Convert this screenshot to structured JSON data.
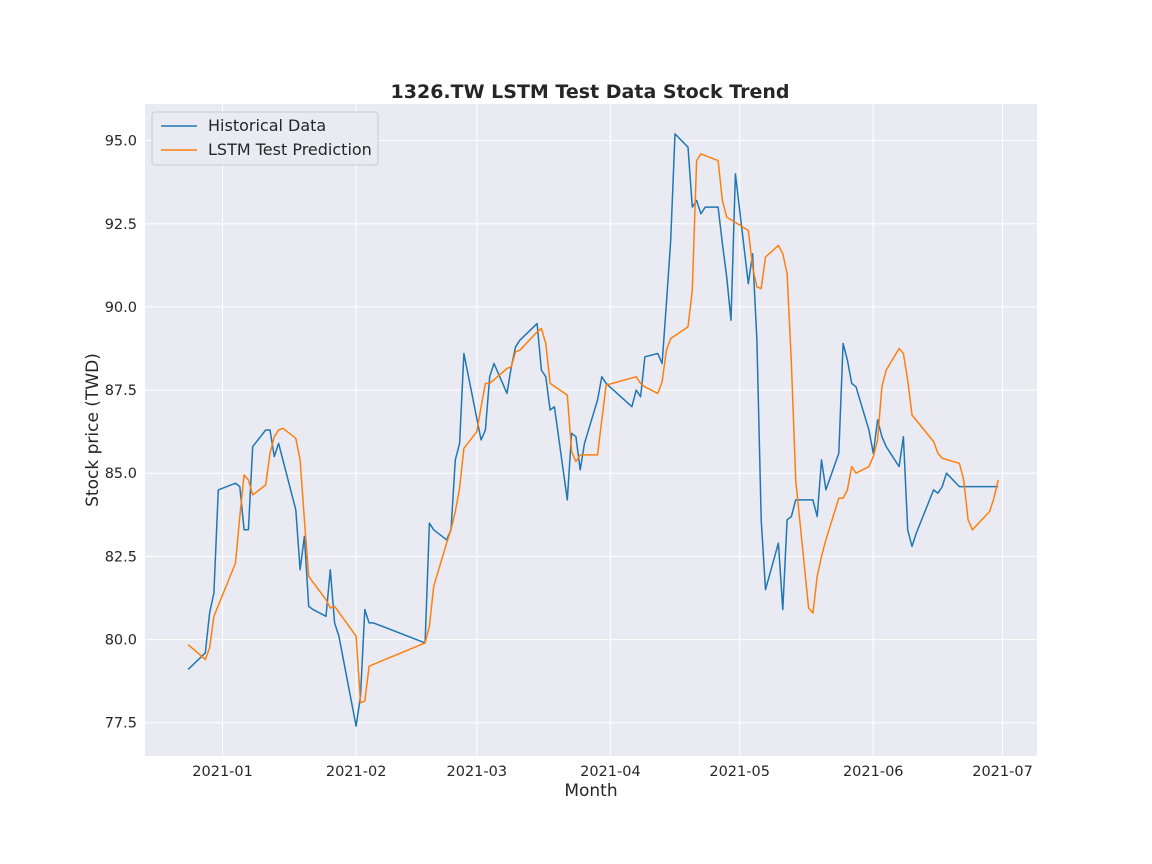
{
  "chart_data": {
    "type": "line",
    "title": "1326.TW  LSTM Test Data Stock Trend",
    "xlabel": "Month",
    "ylabel": "Stock price (TWD)",
    "x_tick_labels": [
      "2021-01",
      "2021-02",
      "2021-03",
      "2021-04",
      "2021-05",
      "2021-06",
      "2021-07"
    ],
    "y_tick_labels": [
      "77.5",
      "80.0",
      "82.5",
      "85.0",
      "87.5",
      "90.0",
      "92.5",
      "95.0"
    ],
    "y_ticks": [
      77.5,
      80.0,
      82.5,
      85.0,
      87.5,
      90.0,
      92.5,
      95.0
    ],
    "x_ticks": [
      "2021-01-01",
      "2021-02-01",
      "2021-03-01",
      "2021-04-01",
      "2021-05-01",
      "2021-06-01",
      "2021-07-01"
    ],
    "xlim": [
      "2020-12-14",
      "2021-07-09"
    ],
    "ylim": [
      76.5,
      96.1
    ],
    "grid": true,
    "legend_position": "upper-left",
    "colors": {
      "background": "#eaeaf2",
      "grid": "#ffffff",
      "historical": "#1f77b4",
      "prediction": "#ff7f0e"
    },
    "series": [
      {
        "name": "Historical Data",
        "x": [
          "2020-12-24",
          "2020-12-28",
          "2020-12-29",
          "2020-12-30",
          "2020-12-31",
          "2021-01-04",
          "2021-01-05",
          "2021-01-06",
          "2021-01-07",
          "2021-01-08",
          "2021-01-11",
          "2021-01-12",
          "2021-01-13",
          "2021-01-14",
          "2021-01-18",
          "2021-01-19",
          "2021-01-20",
          "2021-01-21",
          "2021-01-22",
          "2021-01-25",
          "2021-01-26",
          "2021-01-27",
          "2021-01-28",
          "2021-02-01",
          "2021-02-02",
          "2021-02-03",
          "2021-02-04",
          "2021-02-05",
          "2021-02-17",
          "2021-02-18",
          "2021-02-19",
          "2021-02-22",
          "2021-02-23",
          "2021-02-24",
          "2021-02-25",
          "2021-02-26",
          "2021-03-02",
          "2021-03-03",
          "2021-03-04",
          "2021-03-05",
          "2021-03-08",
          "2021-03-09",
          "2021-03-10",
          "2021-03-11",
          "2021-03-15",
          "2021-03-16",
          "2021-03-17",
          "2021-03-18",
          "2021-03-19",
          "2021-03-22",
          "2021-03-23",
          "2021-03-24",
          "2021-03-25",
          "2021-03-26",
          "2021-03-29",
          "2021-03-30",
          "2021-03-31",
          "2021-04-06",
          "2021-04-07",
          "2021-04-08",
          "2021-04-09",
          "2021-04-12",
          "2021-04-13",
          "2021-04-14",
          "2021-04-15",
          "2021-04-16",
          "2021-04-19",
          "2021-04-20",
          "2021-04-21",
          "2021-04-22",
          "2021-04-23",
          "2021-04-26",
          "2021-04-27",
          "2021-04-28",
          "2021-04-29",
          "2021-04-30",
          "2021-05-03",
          "2021-05-04",
          "2021-05-05",
          "2021-05-06",
          "2021-05-07",
          "2021-05-10",
          "2021-05-11",
          "2021-05-12",
          "2021-05-13",
          "2021-05-14",
          "2021-05-17",
          "2021-05-18",
          "2021-05-19",
          "2021-05-20",
          "2021-05-21",
          "2021-05-24",
          "2021-05-25",
          "2021-05-26",
          "2021-05-27",
          "2021-05-28",
          "2021-05-31",
          "2021-06-01",
          "2021-06-02",
          "2021-06-03",
          "2021-06-04",
          "2021-06-07",
          "2021-06-08",
          "2021-06-09",
          "2021-06-10",
          "2021-06-11",
          "2021-06-15",
          "2021-06-16",
          "2021-06-17",
          "2021-06-18",
          "2021-06-21",
          "2021-06-22",
          "2021-06-23",
          "2021-06-24",
          "2021-06-25",
          "2021-06-28",
          "2021-06-29",
          "2021-06-30"
        ],
        "values": [
          79.1,
          79.6,
          80.8,
          81.4,
          84.5,
          84.7,
          84.6,
          83.3,
          83.3,
          85.8,
          86.3,
          86.3,
          85.5,
          85.9,
          83.9,
          82.1,
          83.1,
          81.0,
          80.9,
          80.7,
          82.1,
          80.5,
          80.1,
          77.4,
          78.3,
          80.9,
          80.5,
          80.5,
          79.9,
          83.5,
          83.3,
          83.0,
          83.3,
          85.4,
          85.9,
          88.6,
          86.0,
          86.3,
          87.9,
          88.3,
          87.4,
          88.2,
          88.8,
          89.0,
          89.5,
          88.1,
          87.9,
          86.9,
          87.0,
          84.2,
          86.2,
          86.1,
          85.1,
          85.9,
          87.2,
          87.9,
          87.7,
          87.0,
          87.5,
          87.3,
          88.5,
          88.6,
          88.3,
          90.1,
          92.0,
          95.2,
          94.8,
          93.0,
          93.2,
          92.8,
          93.0,
          93.0,
          91.9,
          90.9,
          89.6,
          94.0,
          90.7,
          91.6,
          89.0,
          83.6,
          81.5,
          82.9,
          80.9,
          83.6,
          83.7,
          84.2,
          84.2,
          84.2,
          83.7,
          85.4,
          84.5,
          85.6,
          88.9,
          88.4,
          87.7,
          87.6,
          86.3,
          85.6,
          86.6,
          86.1,
          85.8,
          85.2,
          86.1,
          83.3,
          82.8,
          83.2,
          84.5,
          84.4,
          84.6,
          85.0,
          84.6,
          84.6,
          84.6,
          84.6,
          84.6,
          84.6,
          84.6,
          84.6
        ]
      },
      {
        "name": "LSTM Test Prediction",
        "x": [
          "2020-12-24",
          "2020-12-28",
          "2020-12-29",
          "2020-12-30",
          "2021-01-04",
          "2021-01-05",
          "2021-01-06",
          "2021-01-07",
          "2021-01-08",
          "2021-01-11",
          "2021-01-12",
          "2021-01-13",
          "2021-01-14",
          "2021-01-15",
          "2021-01-18",
          "2021-01-19",
          "2021-01-20",
          "2021-01-21",
          "2021-01-25",
          "2021-01-26",
          "2021-01-27",
          "2021-02-01",
          "2021-02-02",
          "2021-02-03",
          "2021-02-04",
          "2021-02-17",
          "2021-02-18",
          "2021-02-19",
          "2021-02-22",
          "2021-02-23",
          "2021-02-24",
          "2021-02-25",
          "2021-02-26",
          "2021-03-01",
          "2021-03-02",
          "2021-03-03",
          "2021-03-04",
          "2021-03-08",
          "2021-03-09",
          "2021-03-10",
          "2021-03-11",
          "2021-03-15",
          "2021-03-16",
          "2021-03-17",
          "2021-03-18",
          "2021-03-22",
          "2021-03-23",
          "2021-03-24",
          "2021-03-25",
          "2021-03-29",
          "2021-03-31",
          "2021-04-07",
          "2021-04-08",
          "2021-04-09",
          "2021-04-12",
          "2021-04-13",
          "2021-04-14",
          "2021-04-15",
          "2021-04-19",
          "2021-04-20",
          "2021-04-21",
          "2021-04-22",
          "2021-04-26",
          "2021-04-27",
          "2021-04-28",
          "2021-05-03",
          "2021-05-04",
          "2021-05-05",
          "2021-05-06",
          "2021-05-07",
          "2021-05-10",
          "2021-05-11",
          "2021-05-12",
          "2021-05-13",
          "2021-05-14",
          "2021-05-17",
          "2021-05-18",
          "2021-05-19",
          "2021-05-20",
          "2021-05-21",
          "2021-05-24",
          "2021-05-25",
          "2021-05-26",
          "2021-05-27",
          "2021-05-28",
          "2021-05-31",
          "2021-06-01",
          "2021-06-02",
          "2021-06-03",
          "2021-06-04",
          "2021-06-07",
          "2021-06-08",
          "2021-06-09",
          "2021-06-10",
          "2021-06-15",
          "2021-06-16",
          "2021-06-17",
          "2021-06-21",
          "2021-06-22",
          "2021-06-23",
          "2021-06-24",
          "2021-06-28",
          "2021-06-29",
          "2021-06-30"
        ],
        "values": [
          79.85,
          79.4,
          79.75,
          80.7,
          82.3,
          83.7,
          84.95,
          84.8,
          84.35,
          84.65,
          85.6,
          86.1,
          86.3,
          86.35,
          86.05,
          85.4,
          83.6,
          81.9,
          81.2,
          80.95,
          81.0,
          80.1,
          78.1,
          78.15,
          79.2,
          79.9,
          80.4,
          81.6,
          82.9,
          83.3,
          83.85,
          84.55,
          85.75,
          86.25,
          87.0,
          87.7,
          87.7,
          88.15,
          88.2,
          88.65,
          88.7,
          89.25,
          89.35,
          88.9,
          87.7,
          87.35,
          85.65,
          85.35,
          85.55,
          85.55,
          87.65,
          87.9,
          87.7,
          87.6,
          87.4,
          87.75,
          88.7,
          89.05,
          89.4,
          90.5,
          94.4,
          94.6,
          94.4,
          93.2,
          92.7,
          92.3,
          91.2,
          90.6,
          90.55,
          91.5,
          91.85,
          91.6,
          91.0,
          88.3,
          84.8,
          80.95,
          80.8,
          81.9,
          82.5,
          83.0,
          84.25,
          84.25,
          84.5,
          85.2,
          85.0,
          85.2,
          85.5,
          86.0,
          87.6,
          88.1,
          88.75,
          88.6,
          87.8,
          86.75,
          85.95,
          85.6,
          85.45,
          85.3,
          84.8,
          83.6,
          83.3,
          83.85,
          84.25,
          84.8
        ]
      }
    ]
  }
}
